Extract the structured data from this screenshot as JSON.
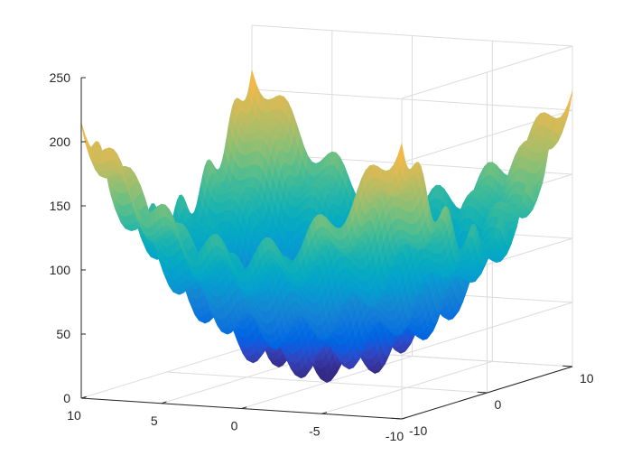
{
  "chart_data": {
    "type": "surface",
    "title": "",
    "xlabel": "",
    "ylabel": "",
    "zlabel": "",
    "function": "x^2 + y^2 + 25*(sin(x)^2 + sin(y)^2)",
    "x_range": [
      -10,
      10
    ],
    "y_range": [
      -10,
      10
    ],
    "zlim": [
      0,
      250
    ],
    "x_ticks": [
      10,
      5,
      0,
      -5,
      -10
    ],
    "y_ticks": [
      -10,
      0,
      10
    ],
    "z_ticks": [
      0,
      50,
      100,
      150,
      200,
      250
    ],
    "x_tick_labels": [
      "10",
      "5",
      "0",
      "-5",
      "-10"
    ],
    "y_tick_labels": [
      "-10",
      "0",
      "10"
    ],
    "z_tick_labels": [
      "0",
      "50",
      "100",
      "150",
      "200",
      "250"
    ],
    "colormap": "parula",
    "grid": true,
    "box": false
  }
}
